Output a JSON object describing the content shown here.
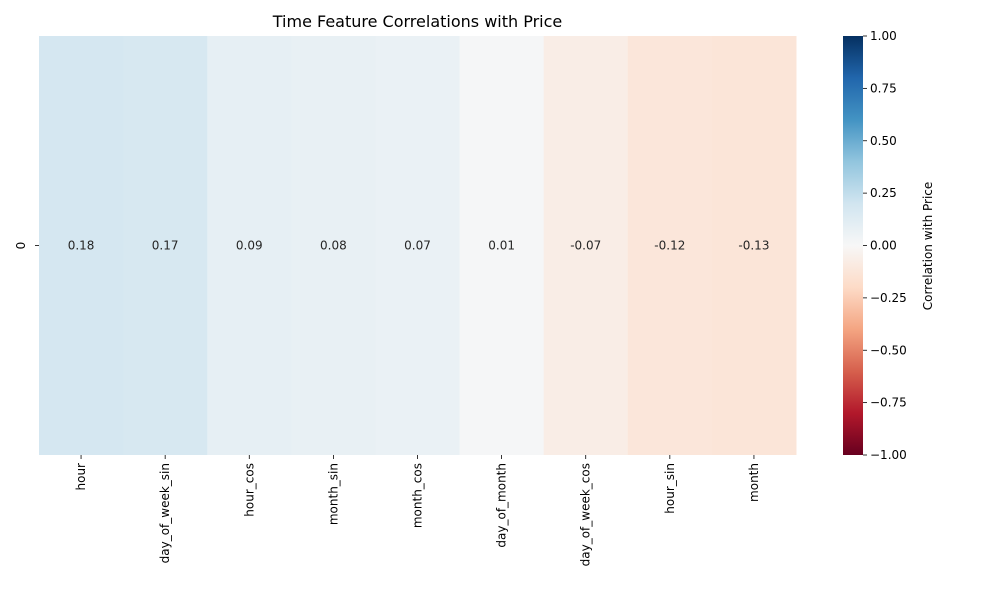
{
  "chart_data": {
    "type": "heatmap",
    "title": "Time Feature Correlations with Price",
    "xlabel": "",
    "ylabel": "",
    "rows": [
      "0"
    ],
    "columns": [
      "hour",
      "day_of_week_sin",
      "hour_cos",
      "month_sin",
      "month_cos",
      "day_of_month",
      "day_of_week_cos",
      "hour_sin",
      "month"
    ],
    "values": [
      [
        0.18,
        0.17,
        0.09,
        0.08,
        0.07,
        0.01,
        -0.07,
        -0.12,
        -0.13
      ]
    ],
    "colormap": "RdBu",
    "vmin": -1.0,
    "vmax": 1.0,
    "colorbar": {
      "label": "Correlation with Price",
      "ticks": [
        "1.00",
        "0.75",
        "0.50",
        "0.25",
        "0.00",
        "−0.25",
        "−0.50",
        "−0.75",
        "−1.00"
      ],
      "tick_values": [
        1.0,
        0.75,
        0.5,
        0.25,
        0.0,
        -0.25,
        -0.5,
        -0.75,
        -1.0
      ]
    },
    "annotated": true,
    "grid": false
  }
}
